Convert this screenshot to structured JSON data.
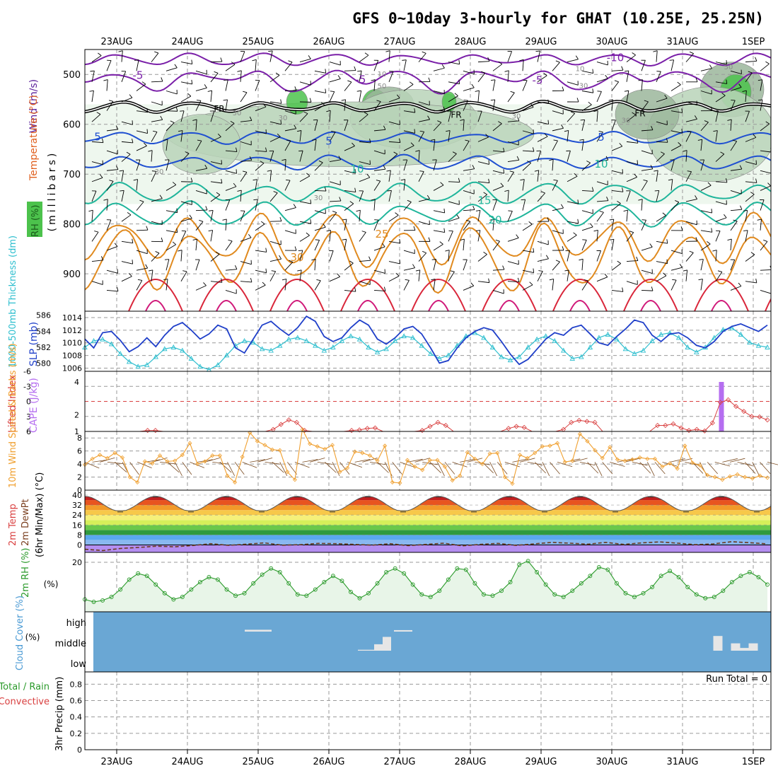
{
  "chart_data": {
    "type": "meteogram",
    "title": "GFS 0~10day 3-hourly for GHAT (10.25E, 25.25N)",
    "dates": [
      "23AUG",
      "24AUG",
      "25AUG",
      "26AUG",
      "27AUG",
      "28AUG",
      "29AUG",
      "30AUG",
      "31AUG",
      "1SEP"
    ],
    "x_range_days": [
      -0.45,
      9.25
    ],
    "colors": {
      "rh_green": "#4cc24c",
      "temp_cold": "#7a1fa8",
      "temp_blue": "#1f4fd1",
      "temp_teal": "#1fb59b",
      "temp_orange": "#e08a1f",
      "temp_red": "#d9263a",
      "slp": "#1f3fc9",
      "thickness": "#2fbfcf",
      "cape": "#b56ef0",
      "lifted_index": "#d94040",
      "wind10m": "#f0a030",
      "rh2m": "#2a9a2a",
      "cloud": "#6aa7d4"
    },
    "upper": {
      "ylabel_wind": "Wind (m/s)",
      "ylabel_temp": "Temperature (°C)",
      "ylabel_rh": "RH (%)",
      "ylabel_p": "(millibars)",
      "p_ticks": [
        {
          "v": 500,
          "t": "500"
        },
        {
          "v": 600,
          "t": "600"
        },
        {
          "v": 700,
          "t": "700"
        },
        {
          "v": 800,
          "t": "800"
        },
        {
          "v": 900,
          "t": "900"
        }
      ],
      "p_range": [
        450,
        975
      ],
      "isotherms": [
        {
          "label": "-10",
          "t": -10,
          "base": 470,
          "amp": 8,
          "colorKey": "temp_cold"
        },
        {
          "label": "-5",
          "t": -5,
          "base": 510,
          "amp": 12,
          "colorKey": "temp_cold"
        },
        {
          "label": "FR",
          "t": 0,
          "base": 565,
          "amp": 7,
          "colorKey": "black"
        },
        {
          "label": "5",
          "t": 5,
          "base": 627,
          "amp": 8,
          "colorKey": "temp_blue"
        },
        {
          "label": "10",
          "t": 10,
          "base": 677,
          "amp": 10,
          "colorKey": "temp_blue"
        },
        {
          "label": "15",
          "t": 15,
          "base": 738,
          "amp": 14,
          "colorKey": "temp_teal"
        },
        {
          "label": "20",
          "t": 20,
          "base": 780,
          "amp": 16,
          "colorKey": "temp_teal"
        },
        {
          "label": "25",
          "t": 25,
          "base": 830,
          "amp": 22,
          "colorKey": "temp_orange"
        },
        {
          "label": "30",
          "t": 30,
          "base": 868,
          "amp": 28,
          "colorKey": "temp_orange"
        }
      ],
      "inline_labels": [
        {
          "text": "-10",
          "day": 7.05,
          "p": 466,
          "colorKey": "temp_cold"
        },
        {
          "text": "-5",
          "day": 0.3,
          "p": 502,
          "colorKey": "temp_cold"
        },
        {
          "text": "-5",
          "day": 3.45,
          "p": 510,
          "colorKey": "temp_cold"
        },
        {
          "text": "-5",
          "day": 5.95,
          "p": 512,
          "colorKey": "temp_cold"
        },
        {
          "text": "FR",
          "day": 1.45,
          "p": 568,
          "colorKey": "black"
        },
        {
          "text": "FR",
          "day": 4.8,
          "p": 580,
          "colorKey": "black"
        },
        {
          "text": "FR",
          "day": 7.4,
          "p": 577,
          "colorKey": "black"
        },
        {
          "text": "5",
          "day": -0.27,
          "p": 625,
          "colorKey": "temp_blue"
        },
        {
          "text": "5",
          "day": 3.0,
          "p": 634,
          "colorKey": "temp_blue"
        },
        {
          "text": "5",
          "day": 6.85,
          "p": 626,
          "colorKey": "temp_blue"
        },
        {
          "text": "10",
          "day": 3.4,
          "p": 690,
          "colorKey": "temp_teal"
        },
        {
          "text": "10",
          "day": 6.85,
          "p": 680,
          "colorKey": "temp_teal"
        },
        {
          "text": "15",
          "day": 5.2,
          "p": 753,
          "colorKey": "temp_teal"
        },
        {
          "text": "20",
          "day": 5.35,
          "p": 792,
          "colorKey": "temp_teal"
        },
        {
          "text": "25",
          "day": 3.75,
          "p": 820,
          "colorKey": "temp_orange"
        },
        {
          "text": "30",
          "day": 2.55,
          "p": 867,
          "colorKey": "temp_orange"
        }
      ],
      "rh_contour_labels": [
        {
          "text": "30",
          "day": 1.7,
          "p": 582
        },
        {
          "text": "30",
          "day": 2.35,
          "p": 592
        },
        {
          "text": "30",
          "day": 5.65,
          "p": 588
        },
        {
          "text": "50",
          "day": 3.75,
          "p": 528
        },
        {
          "text": "10",
          "day": 3.75,
          "p": 504
        },
        {
          "text": "30",
          "day": 0.6,
          "p": 700
        },
        {
          "text": "30",
          "day": 2.85,
          "p": 752
        },
        {
          "text": "30",
          "day": 6.6,
          "p": 527
        },
        {
          "text": "10",
          "day": 6.55,
          "p": 493
        },
        {
          "text": "30",
          "day": 7.2,
          "p": 597
        },
        {
          "text": "50",
          "day": 8.65,
          "p": 490
        }
      ],
      "rh_blobs": [
        {
          "day": 3.65,
          "p": 560,
          "rx": 0.18,
          "ry": 30,
          "level": 3
        },
        {
          "day": 3.85,
          "p": 560,
          "rx": 0.35,
          "ry": 35,
          "level": 2
        },
        {
          "day": 4.2,
          "p": 590,
          "rx": 0.9,
          "ry": 60,
          "level": 1
        },
        {
          "day": 3.3,
          "p": 620,
          "rx": 2.6,
          "ry": 65,
          "level": 1
        },
        {
          "day": 8.7,
          "p": 530,
          "rx": 0.45,
          "ry": 55,
          "level": 2
        },
        {
          "day": 8.75,
          "p": 535,
          "rx": 0.22,
          "ry": 35,
          "level": 3
        },
        {
          "day": 8.4,
          "p": 620,
          "rx": 0.9,
          "ry": 95,
          "level": 1
        },
        {
          "day": 2.55,
          "p": 555,
          "rx": 0.15,
          "ry": 25,
          "level": 3
        },
        {
          "day": 4.7,
          "p": 555,
          "rx": 0.1,
          "ry": 20,
          "level": 3
        },
        {
          "day": 1.2,
          "p": 640,
          "rx": 0.55,
          "ry": 60,
          "level": 1
        },
        {
          "day": 7.5,
          "p": 580,
          "rx": 0.45,
          "ry": 50,
          "level": 2
        }
      ]
    },
    "slp_panel": {
      "ylabel_thk": "1000-500mb Thickness (dm)",
      "ylabel_slp": "SLP (mb)",
      "thk_ticks": [
        "586",
        "584",
        "582",
        "580"
      ],
      "slp_ticks": [
        "1014",
        "1012",
        "1010",
        "1008",
        "1006"
      ],
      "slp_range": [
        1005.5,
        1015
      ],
      "slp": [
        1010.6,
        1009.2,
        1011.6,
        1011.8,
        1010.4,
        1008.6,
        1009.4,
        1010.8,
        1009.4,
        1011.2,
        1012.6,
        1013.2,
        1012.0,
        1010.6,
        1011.4,
        1012.8,
        1012.2,
        1009.2,
        1008.4,
        1010.6,
        1012.8,
        1013.4,
        1012.2,
        1011.2,
        1012.4,
        1014.2,
        1013.4,
        1011.0,
        1010.2,
        1010.8,
        1012.4,
        1013.6,
        1012.8,
        1010.6,
        1009.8,
        1010.8,
        1012.2,
        1012.6,
        1011.4,
        1009.2,
        1006.8,
        1007.2,
        1009.2,
        1010.8,
        1011.8,
        1012.4,
        1012.0,
        1010.2,
        1008.2,
        1006.6,
        1007.4,
        1009.0,
        1010.6,
        1011.6,
        1011.2,
        1012.4,
        1012.8,
        1011.4,
        1010.0,
        1009.6,
        1011.0,
        1012.2,
        1013.6,
        1013.2,
        1011.2,
        1010.2,
        1011.4,
        1011.6,
        1010.8,
        1009.6,
        1009.2,
        1010.2,
        1011.8,
        1012.6,
        1013.0,
        1012.4,
        1011.8,
        1012.8
      ],
      "thk": [
        582.0,
        582.8,
        583.0,
        582.4,
        581.2,
        580.2,
        579.6,
        579.8,
        580.8,
        581.8,
        582.0,
        581.6,
        580.6,
        579.6,
        579.2,
        579.8,
        581.0,
        582.2,
        582.8,
        582.6,
        581.8,
        581.6,
        582.2,
        583.0,
        583.2,
        582.8,
        582.2,
        581.6,
        582.0,
        582.8,
        583.4,
        583.0,
        582.0,
        581.4,
        581.8,
        582.8,
        583.4,
        583.2,
        582.2,
        581.2,
        580.6,
        581.0,
        582.2,
        583.4,
        583.8,
        583.2,
        582.0,
        580.8,
        580.4,
        580.8,
        582.0,
        583.0,
        583.4,
        582.8,
        581.6,
        580.6,
        580.8,
        582.0,
        583.2,
        583.6,
        583.0,
        581.8,
        581.2,
        581.6,
        582.8,
        583.6,
        583.8,
        583.2,
        582.0,
        581.4,
        582.0,
        583.2,
        584.2,
        584.4,
        583.6,
        582.6,
        582.2,
        582.0
      ],
      "thk_range": [
        579.0,
        586.5
      ]
    },
    "cape_panel": {
      "ylabel_li": "Lifted Index",
      "ylabel_cape": "CAPE (J/kg)",
      "li_ticks": [
        "-6",
        "-3",
        "0",
        "3",
        "6"
      ],
      "cape_ticks": [
        "4",
        "2",
        "1"
      ],
      "li_range": [
        -6,
        6
      ],
      "cape_bar": {
        "day": 8.55,
        "height": 4
      },
      "li": [
        6,
        6,
        6,
        6,
        6,
        6,
        6,
        6,
        5.8,
        5.8,
        6,
        6,
        6,
        6,
        6,
        6,
        6,
        6,
        6,
        6,
        6,
        6,
        6,
        6,
        5.6,
        4.6,
        3.7,
        4.2,
        5.8,
        6,
        6,
        6,
        6,
        6,
        5.8,
        5.7,
        5.4,
        5.3,
        6,
        6,
        6,
        6,
        6,
        5.8,
        5,
        4.2,
        4.8,
        6,
        6,
        6,
        6,
        6,
        6,
        6,
        5.4,
        5,
        5.2,
        6,
        6,
        6,
        6,
        5.6,
        4.2,
        3.8,
        4.0,
        4.2,
        6,
        6,
        6,
        6,
        6,
        6,
        6,
        4.8,
        4.8,
        4.5,
        5.3,
        5.8,
        5.6,
        5.9,
        4.3,
        0.2,
        -0.3,
        1.0,
        2.0,
        3.0,
        3.1,
        3.7
      ]
    },
    "wind_panel": {
      "ylabel": "10m Wind Speed & Barbs (m/s)",
      "ticks": [
        "8",
        "6",
        "4",
        "2",
        "0"
      ],
      "range": [
        0,
        9
      ],
      "speed": [
        3.9,
        4.8,
        5.4,
        4.9,
        5.7,
        5.0,
        2.0,
        1.2,
        4.4,
        4.1,
        5.3,
        4.4,
        4.5,
        5.4,
        7.2,
        4.0,
        4.4,
        5.3,
        5.3,
        2.2,
        1.2,
        5.1,
        8.8,
        7.5,
        6.9,
        6.2,
        6.1,
        2.8,
        1.6,
        9.3,
        7.1,
        6.7,
        6.3,
        6.9,
        2.8,
        3.4,
        5.9,
        5.7,
        5.3,
        4.5,
        6.8,
        1.2,
        1.1,
        4.6,
        3.6,
        3.1,
        4.6,
        4.6,
        3.6,
        1.5,
        2.2,
        5.8,
        4.8,
        4.0,
        5.6,
        5.7,
        2.0,
        1.0,
        5.4,
        4.9,
        5.7,
        6.7,
        6.8,
        7.2,
        4.3,
        4.5,
        8.6,
        7.5,
        6.1,
        4.9,
        6.6,
        4.7,
        4.5,
        4.7,
        5.0,
        4.8,
        4.8,
        3.6,
        4.1,
        3.3,
        6.8,
        4.2,
        3.8,
        2.3,
        2.0,
        1.6,
        2.1,
        2.4,
        2.0,
        1.8,
        2.2,
        1.9
      ]
    },
    "temp_panel": {
      "ylabel_t": "2m Temp",
      "ylabel_d": "2m DewPt",
      "ylabel_minmax": "(6hr Min/Max) (°C)",
      "ticks": [
        "40",
        "32",
        "24",
        "16",
        "8",
        "0"
      ],
      "range": [
        -6,
        44
      ],
      "temp_max": 38.5,
      "temp_min": 27.5,
      "dewpt": [
        -3.5,
        -4.5,
        -2.8,
        -2.0,
        -1.0,
        -1.5,
        -0.5,
        1.0,
        -0.3,
        0.6,
        1.6,
        -0.2,
        0.2,
        1.2,
        1.0,
        0.4,
        -0.2,
        1.0,
        -0.6,
        0.4,
        1.4,
        -0.8,
        0.4,
        1.2,
        -0.4,
        0.8,
        2.0,
        1.4,
        0.6,
        2.0,
        0.4,
        1.6,
        2.4,
        1.4,
        0.2,
        0.8,
        2.6,
        1.8,
        0.8
      ]
    },
    "rh2m_panel": {
      "ylabel": "2m RH (%)",
      "ticks": [
        "20"
      ],
      "range": [
        0,
        24
      ],
      "rh": [
        5.0,
        4.0,
        4.6,
        6.0,
        9.0,
        13.0,
        15.5,
        14.5,
        11.0,
        7.5,
        5.0,
        6.0,
        9.0,
        12.0,
        14.0,
        13.0,
        9.0,
        6.5,
        7.5,
        11.5,
        15.0,
        17.5,
        16.0,
        11.5,
        7.0,
        6.5,
        9.0,
        12.0,
        14.5,
        12.5,
        8.0,
        5.5,
        7.5,
        11.5,
        16.0,
        17.5,
        15.5,
        11.0,
        7.0,
        6.0,
        8.5,
        13.0,
        17.5,
        17.0,
        11.5,
        7.0,
        6.5,
        8.5,
        12.0,
        19.0,
        20.5,
        16.0,
        11.0,
        7.0,
        6.0,
        8.5,
        11.5,
        14.5,
        18.0,
        17.0,
        11.5,
        7.5,
        6.0,
        7.5,
        10.0,
        14.5,
        16.5,
        14.0,
        10.0,
        7.0,
        5.5,
        6.0,
        8.5,
        12.0,
        14.5,
        16.0,
        14.0,
        11.0
      ]
    },
    "cloud_panel": {
      "ylabel": "Cloud Cover (%)",
      "levels": [
        "high",
        "middle",
        "low"
      ],
      "blocks": [
        {
          "day": 2.0,
          "w": 0.38,
          "level": "high",
          "h": 0.1
        },
        {
          "day": 3.62,
          "w": 0.42,
          "level": "middle",
          "h": 0.05
        },
        {
          "day": 3.7,
          "w": 0.12,
          "level": "middle",
          "h": 0.35
        },
        {
          "day": 3.82,
          "w": 0.12,
          "level": "middle",
          "h": 0.75
        },
        {
          "day": 4.05,
          "w": 0.26,
          "level": "high",
          "h": 0.08
        },
        {
          "day": 8.5,
          "w": 0.13,
          "level": "middle",
          "h": 0.8
        },
        {
          "day": 8.75,
          "w": 0.13,
          "level": "middle",
          "h": 0.4
        },
        {
          "day": 8.88,
          "w": 0.13,
          "level": "middle",
          "h": 0.15
        },
        {
          "day": 9.0,
          "w": 0.13,
          "level": "middle",
          "h": 0.4
        }
      ]
    },
    "precip_panel": {
      "ylabel_total": "Total / Rain",
      "ylabel_conv": "Convective",
      "ylabel_unit": "3hr Precip (mm)",
      "ticks": [
        "0.8",
        "0.6",
        "0.4",
        "0.2",
        "0"
      ],
      "range": [
        0,
        0.95
      ],
      "run_total": "Run Total = 0"
    }
  }
}
